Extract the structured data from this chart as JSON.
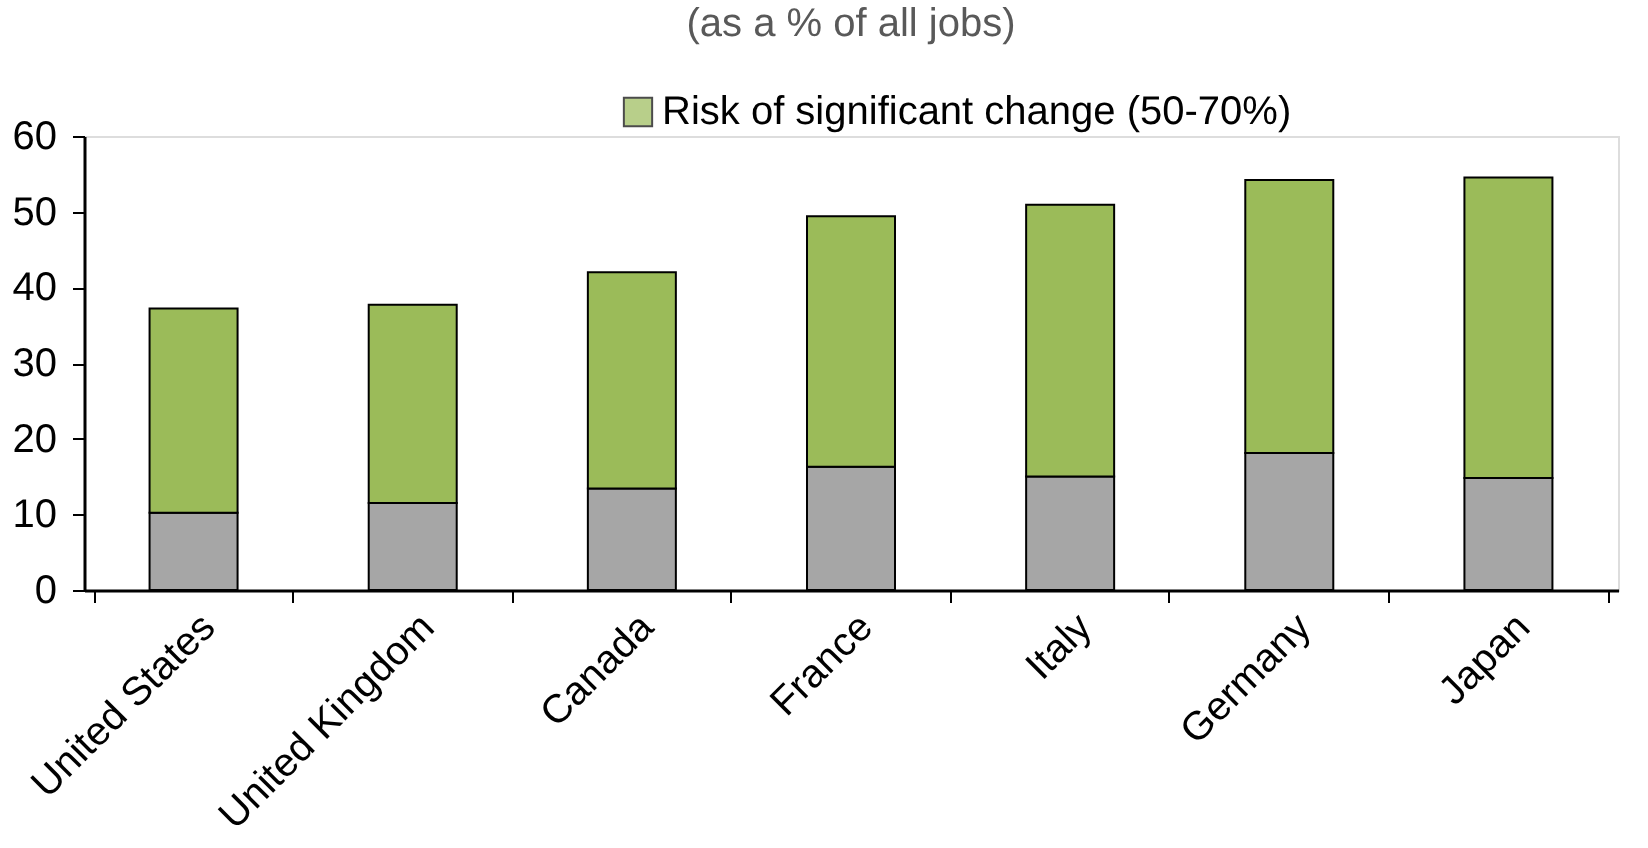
{
  "chart_data": {
    "type": "bar",
    "stacked": true,
    "subtitle": "(as a % of all jobs)",
    "categories": [
      "United States",
      "United Kingdom",
      "Canada",
      "France",
      "Italy",
      "Germany",
      "Japan"
    ],
    "series": [
      {
        "color": "#a6a6a6",
        "values": [
          10.2,
          11.5,
          13.4,
          16.3,
          15.0,
          18.1,
          14.8
        ]
      },
      {
        "name": "Risk of significant change (50-70%)",
        "color": "#9bbb59",
        "values": [
          27.0,
          26.2,
          28.6,
          33.1,
          35.9,
          36.1,
          39.7
        ]
      }
    ],
    "ylim": [
      0,
      60
    ],
    "yticks": [
      0,
      10,
      20,
      30,
      40,
      50,
      60
    ],
    "grid": false,
    "legend": "top"
  }
}
